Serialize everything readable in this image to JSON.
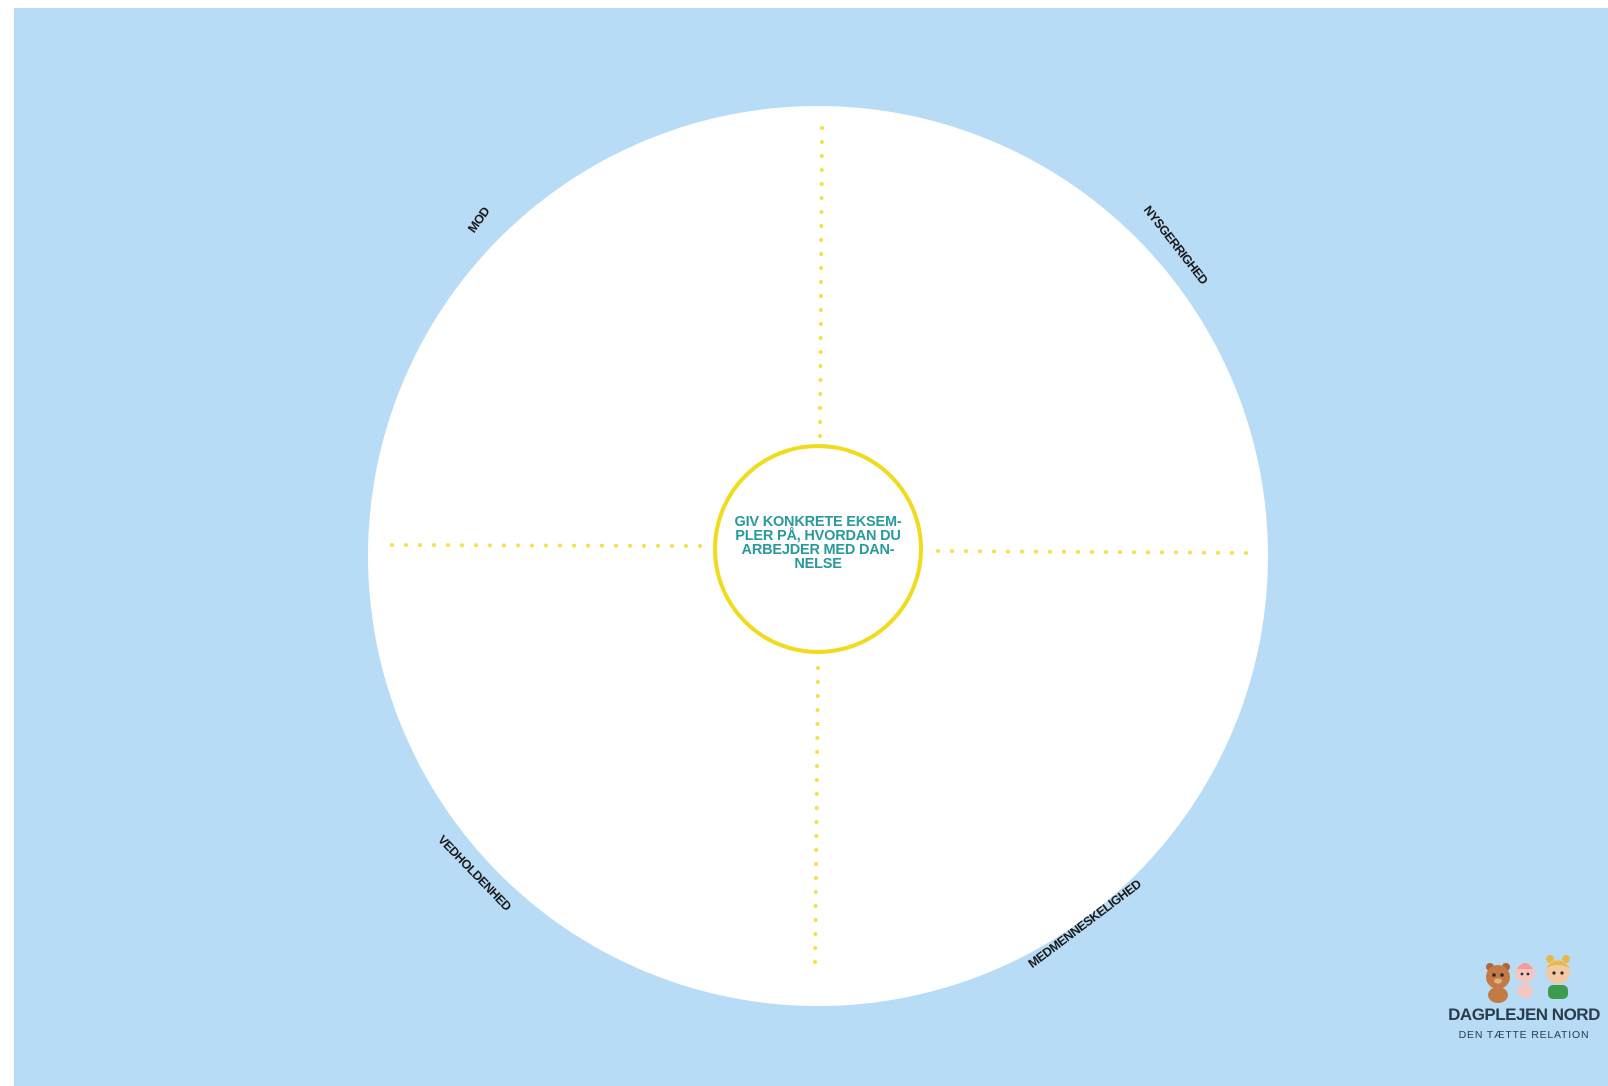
{
  "center": {
    "text": "GIV KONKRETE EKSEM-\nPLER PÅ, HVORDAN DU\nARBEJDER MED DAN-\nNELSE"
  },
  "values": {
    "top_left": "MOD",
    "top_right": "NYSGERRIGHED",
    "bottom_left": "VEDHOLDENHED",
    "bottom_right": "MEDMENNESKELIGHED"
  },
  "logo": {
    "name": "DAGPLEJEN NORD",
    "tagline": "DEN TÆTTE RELATION"
  },
  "colors": {
    "background": "#b8dcf6",
    "circle": "#ffffff",
    "ring": "#f0dc1e",
    "dots": "#f3e14a",
    "center_text": "#2a9a9b"
  },
  "icons": [
    "teddy-bear-icon",
    "baby-icon",
    "child-icon"
  ]
}
